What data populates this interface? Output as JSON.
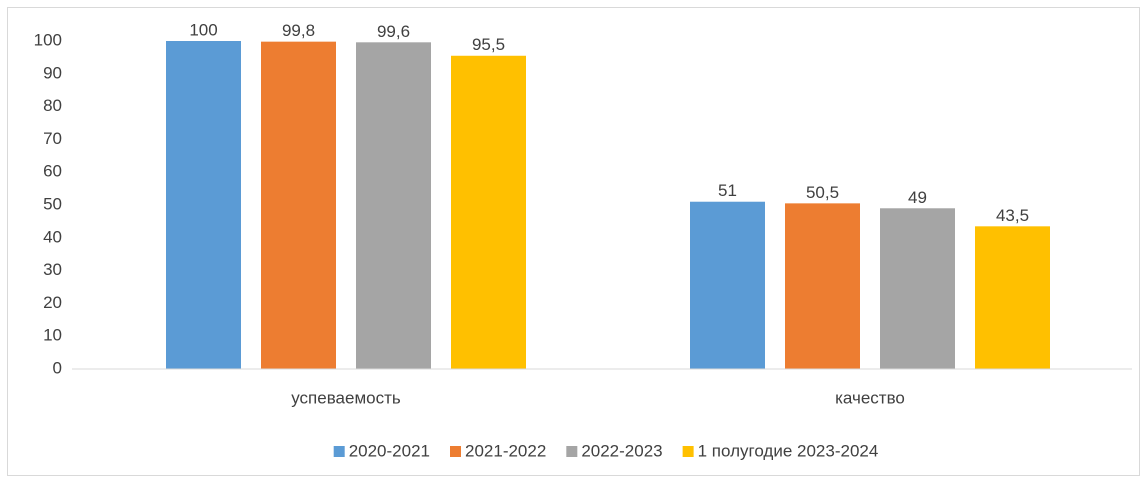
{
  "chart_data": {
    "type": "bar",
    "categories": [
      "успеваемость",
      "качество"
    ],
    "series": [
      {
        "name": "2020-2021",
        "color": "#5b9bd5",
        "values": [
          100,
          51
        ],
        "value_labels": [
          "100",
          "51"
        ]
      },
      {
        "name": "2021-2022",
        "color": "#ed7d31",
        "values": [
          99.8,
          50.5
        ],
        "value_labels": [
          "99,8",
          "50,5"
        ]
      },
      {
        "name": "2022-2023",
        "color": "#a5a5a5",
        "values": [
          99.6,
          49
        ],
        "value_labels": [
          "99,6",
          "49"
        ]
      },
      {
        "name": "1 полугодие 2023-2024",
        "color": "#ffc000",
        "values": [
          95.5,
          43.5
        ],
        "value_labels": [
          "95,5",
          "43,5"
        ]
      }
    ],
    "ylim": [
      0,
      100
    ],
    "yticks": [
      0,
      10,
      20,
      30,
      40,
      50,
      60,
      70,
      80,
      90,
      100
    ],
    "grid": false,
    "legend": "bottom"
  }
}
